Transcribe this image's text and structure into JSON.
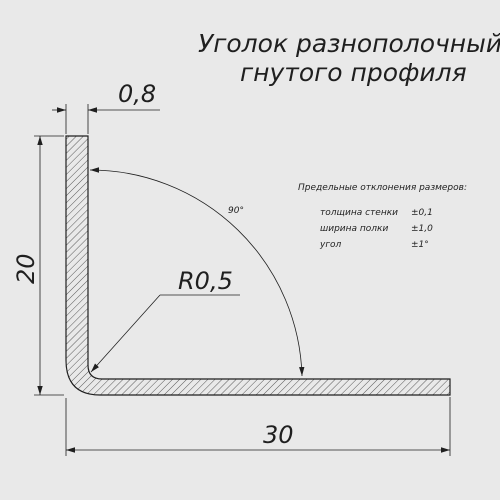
{
  "title": {
    "line1": "Уголок разнополочный",
    "line2": "гнутого профиля"
  },
  "dimensions": {
    "thickness": "0,8",
    "height": "20",
    "width": "30",
    "radius": "R0,5",
    "angle": "90°"
  },
  "tolerances": {
    "heading": "Предельные отклонения размеров:",
    "rows": [
      {
        "label": "толщина стенки",
        "value": "±0,1"
      },
      {
        "label": "ширина полки",
        "value": "±1,0"
      },
      {
        "label": "угол",
        "value": "±1°"
      }
    ]
  },
  "colors": {
    "background": "#e9e9e9",
    "ink": "#1f1f1f"
  }
}
